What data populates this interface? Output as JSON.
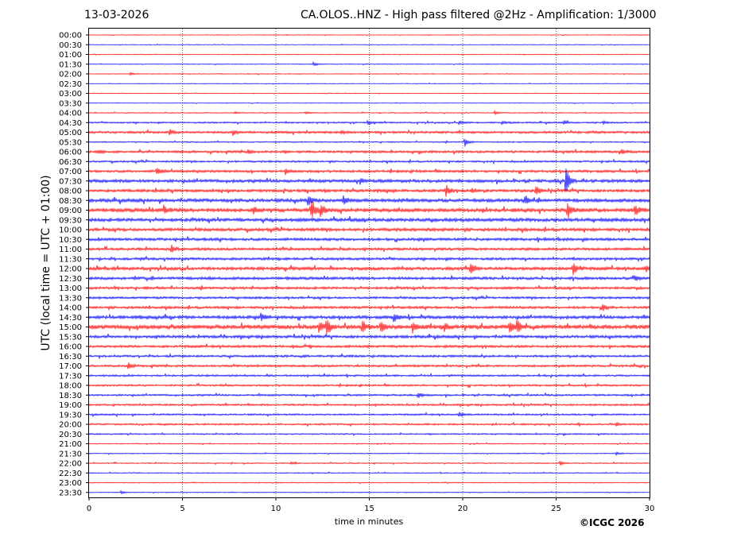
{
  "header": {
    "date": "13-03-2026",
    "title": "CA.OLOS..HNZ - High pass filtered @2Hz - Amplification: 1/3000"
  },
  "credit": "©ICGC 2026",
  "chart_data": {
    "type": "line",
    "title": "CA.OLOS..HNZ - High pass filtered @2Hz - Amplification: 1/3000",
    "xlabel": "time in minutes",
    "ylabel": "UTC (local time = UTC + 01:00)",
    "xlim": [
      0,
      30
    ],
    "xticks": [
      0,
      5,
      10,
      15,
      20,
      25,
      30
    ],
    "vertical_gridlines": [
      5,
      10,
      15,
      20,
      25
    ],
    "row_labels": [
      "00:00",
      "00:30",
      "01:00",
      "01:30",
      "02:00",
      "02:30",
      "03:00",
      "03:30",
      "04:00",
      "04:30",
      "05:00",
      "05:30",
      "06:00",
      "06:30",
      "07:00",
      "07:30",
      "08:00",
      "08:30",
      "09:00",
      "09:30",
      "10:00",
      "10:30",
      "11:00",
      "11:30",
      "12:00",
      "12:30",
      "13:00",
      "13:30",
      "14:00",
      "14:30",
      "15:00",
      "15:30",
      "16:00",
      "16:30",
      "17:00",
      "17:30",
      "18:00",
      "18:30",
      "19:00",
      "19:30",
      "20:00",
      "20:30",
      "21:00",
      "21:30",
      "22:00",
      "22:30",
      "23:00",
      "23:30"
    ],
    "colors": [
      "#ff0000",
      "#0000ff"
    ],
    "noise_levels": [
      0.4,
      0.4,
      0.4,
      0.5,
      0.5,
      0.4,
      0.4,
      0.4,
      0.6,
      1.0,
      1.5,
      0.8,
      1.5,
      1.2,
      1.6,
      2.0,
      1.8,
      2.2,
      2.4,
      2.2,
      2.0,
      1.8,
      1.7,
      1.6,
      2.0,
      1.8,
      1.6,
      1.4,
      1.6,
      2.0,
      2.6,
      1.8,
      1.6,
      1.4,
      1.4,
      1.2,
      1.2,
      1.2,
      1.2,
      1.1,
      1.1,
      0.9,
      0.6,
      0.6,
      0.7,
      0.6,
      0.6,
      0.5
    ],
    "events": [
      {
        "row": 3,
        "t": 12.0,
        "amp": 3
      },
      {
        "row": 4,
        "t": 2.2,
        "amp": 2
      },
      {
        "row": 8,
        "t": 7.8,
        "amp": 1.5
      },
      {
        "row": 8,
        "t": 11.6,
        "amp": 2
      },
      {
        "row": 8,
        "t": 21.7,
        "amp": 2.5
      },
      {
        "row": 9,
        "t": 14.9,
        "amp": 3
      },
      {
        "row": 9,
        "t": 19.8,
        "amp": 3
      },
      {
        "row": 9,
        "t": 22.1,
        "amp": 2
      },
      {
        "row": 9,
        "t": 25.4,
        "amp": 2.5
      },
      {
        "row": 9,
        "t": 27.5,
        "amp": 2
      },
      {
        "row": 10,
        "t": 4.3,
        "amp": 4
      },
      {
        "row": 10,
        "t": 7.7,
        "amp": 4
      },
      {
        "row": 10,
        "t": 13.5,
        "amp": 2
      },
      {
        "row": 11,
        "t": 20.1,
        "amp": 6
      },
      {
        "row": 12,
        "t": 0.5,
        "amp": 3
      },
      {
        "row": 12,
        "t": 8.5,
        "amp": 3
      },
      {
        "row": 12,
        "t": 28.5,
        "amp": 3
      },
      {
        "row": 14,
        "t": 3.6,
        "amp": 5
      },
      {
        "row": 14,
        "t": 10.5,
        "amp": 4
      },
      {
        "row": 15,
        "t": 14.5,
        "amp": 4
      },
      {
        "row": 15,
        "t": 25.5,
        "amp": 18
      },
      {
        "row": 16,
        "t": 19.1,
        "amp": 8
      },
      {
        "row": 16,
        "t": 23.9,
        "amp": 7
      },
      {
        "row": 16,
        "t": 20.5,
        "amp": 3
      },
      {
        "row": 17,
        "t": 11.7,
        "amp": 7
      },
      {
        "row": 17,
        "t": 13.6,
        "amp": 6
      },
      {
        "row": 17,
        "t": 23.3,
        "amp": 5
      },
      {
        "row": 18,
        "t": 4.0,
        "amp": 5
      },
      {
        "row": 18,
        "t": 8.8,
        "amp": 5
      },
      {
        "row": 18,
        "t": 11.9,
        "amp": 16
      },
      {
        "row": 18,
        "t": 12.4,
        "amp": 9
      },
      {
        "row": 18,
        "t": 25.6,
        "amp": 9
      },
      {
        "row": 18,
        "t": 29.2,
        "amp": 8
      },
      {
        "row": 22,
        "t": 4.4,
        "amp": 5
      },
      {
        "row": 24,
        "t": 20.4,
        "amp": 8
      },
      {
        "row": 24,
        "t": 25.9,
        "amp": 8
      },
      {
        "row": 24,
        "t": 29.8,
        "amp": 4
      },
      {
        "row": 25,
        "t": 29.2,
        "amp": 4
      },
      {
        "row": 28,
        "t": 27.5,
        "amp": 5
      },
      {
        "row": 29,
        "t": 9.2,
        "amp": 6
      },
      {
        "row": 29,
        "t": 16.3,
        "amp": 6
      },
      {
        "row": 30,
        "t": 12.3,
        "amp": 7
      },
      {
        "row": 30,
        "t": 12.7,
        "amp": 11
      },
      {
        "row": 30,
        "t": 14.6,
        "amp": 9
      },
      {
        "row": 30,
        "t": 15.6,
        "amp": 8
      },
      {
        "row": 30,
        "t": 17.3,
        "amp": 7
      },
      {
        "row": 30,
        "t": 19.0,
        "amp": 5
      },
      {
        "row": 30,
        "t": 22.5,
        "amp": 8
      },
      {
        "row": 30,
        "t": 22.9,
        "amp": 9
      },
      {
        "row": 34,
        "t": 2.1,
        "amp": 6
      },
      {
        "row": 37,
        "t": 17.6,
        "amp": 4
      },
      {
        "row": 39,
        "t": 19.8,
        "amp": 3
      },
      {
        "row": 40,
        "t": 28.2,
        "amp": 3
      },
      {
        "row": 43,
        "t": 28.2,
        "amp": 2
      },
      {
        "row": 44,
        "t": 10.8,
        "amp": 2
      },
      {
        "row": 44,
        "t": 25.2,
        "amp": 3
      },
      {
        "row": 47,
        "t": 1.7,
        "amp": 2
      }
    ]
  }
}
